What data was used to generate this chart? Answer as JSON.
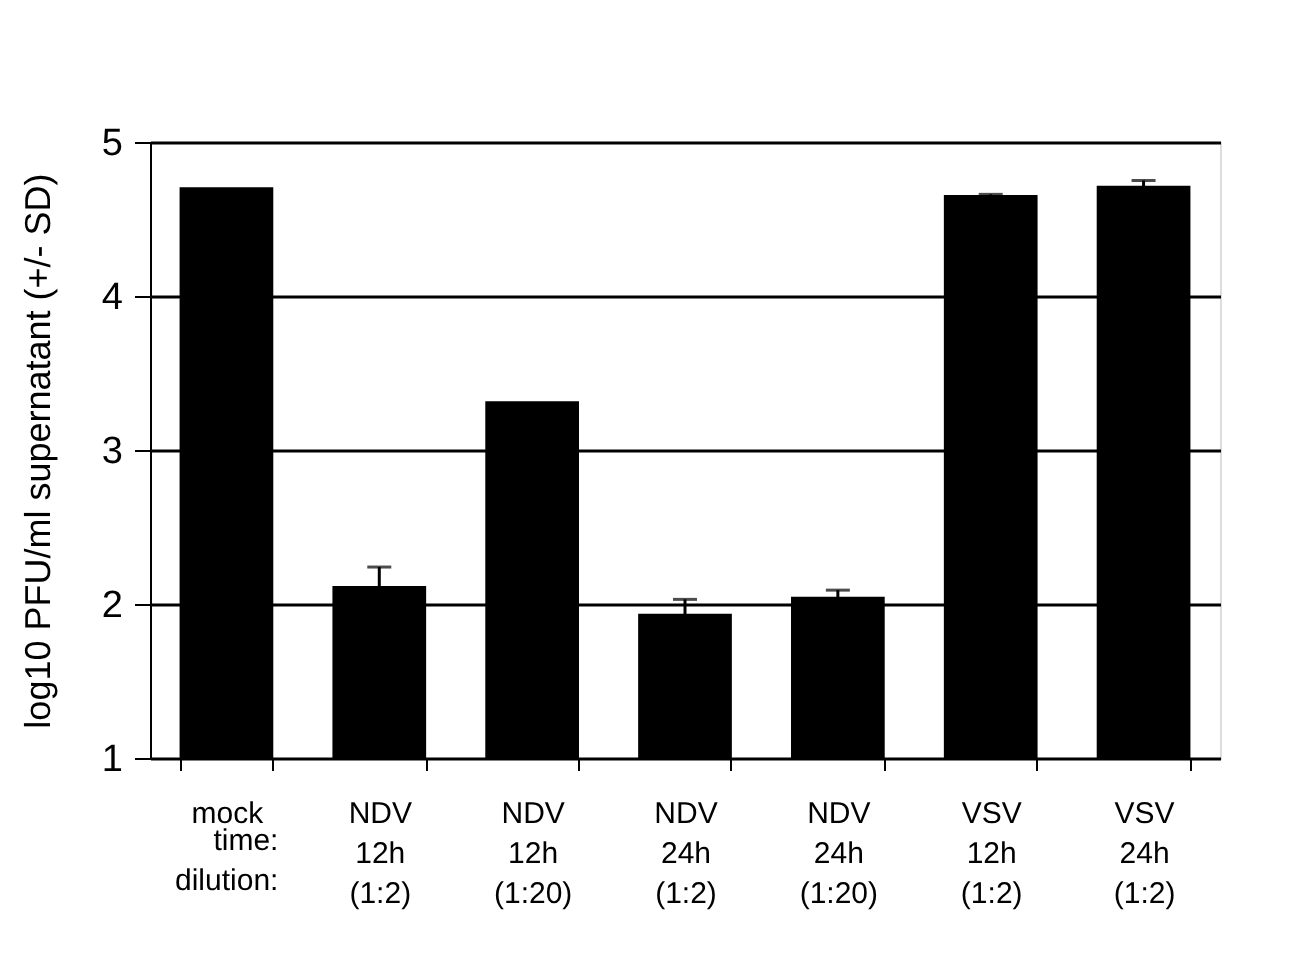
{
  "chart_data": {
    "type": "bar",
    "ylabel": "log10 PFU/ml supernatant (+/- SD)",
    "categories": [
      "mock",
      "NDV\n12h\n(1:2)",
      "NDV\n12h\n(1:20)",
      "NDV\n24h\n(1:2)",
      "NDV\n24h\n(1:20)",
      "VSV\n12h\n(1:2)",
      "VSV\n24h\n(1:2)"
    ],
    "values": [
      4.7,
      2.11,
      3.31,
      1.93,
      2.04,
      4.65,
      4.71
    ],
    "errors": [
      null,
      0.13,
      null,
      0.1,
      0.05,
      0.01,
      0.04
    ],
    "color": "#000000",
    "ylim": [
      1,
      5
    ],
    "yticks": [
      1,
      2,
      3,
      4,
      5
    ],
    "grid": "y",
    "annotations": [
      "time:",
      "dilution:"
    ]
  }
}
